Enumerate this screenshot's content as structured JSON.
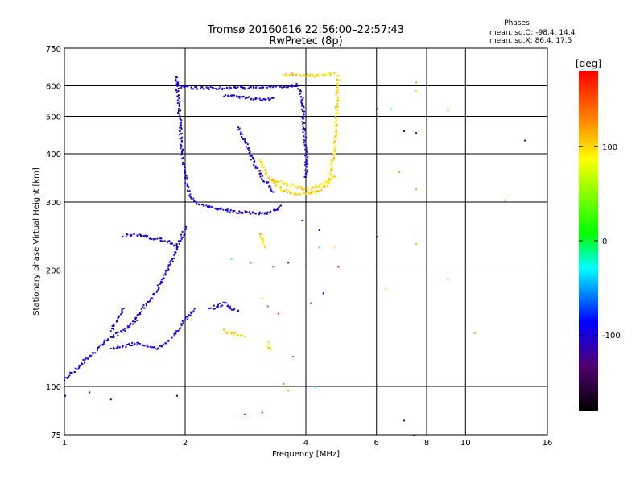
{
  "chart_data": {
    "type": "scatter",
    "title": "Tromsø 20160616 22:56:00–22:57:43",
    "subtitle": "RwPretec (8p)",
    "xlabel": "Frequency [MHz]",
    "ylabel": "Stationary phase Virtual Height [km]",
    "x_scale": "log",
    "y_scale": "log",
    "xlim": [
      1,
      16
    ],
    "ylim": [
      75,
      750
    ],
    "x_ticks": [
      1,
      2,
      4,
      6,
      8,
      10,
      16
    ],
    "y_ticks": [
      75,
      100,
      200,
      300,
      400,
      500,
      600,
      750
    ],
    "x_grid": [
      2,
      4,
      6,
      8,
      10
    ],
    "y_grid": [
      100,
      200,
      300,
      400,
      500,
      600
    ],
    "stats": {
      "heading": "Phases",
      "line1": "mean, sd,O: -98.4, 14.4",
      "line2": "mean, sd,X:  86.4, 17.5"
    },
    "colorbar": {
      "label": "[deg]",
      "min": -180,
      "max": 180,
      "ticks": [
        {
          "value": 100,
          "label": "100"
        },
        {
          "value": 0,
          "label": "0"
        },
        {
          "value": -100,
          "label": "-100"
        }
      ]
    },
    "series": [
      {
        "mode": "O",
        "phase_deg": -100,
        "traces": [
          {
            "x": [
              1.9,
              1.93,
              1.96,
              2.0,
              2.05,
              2.15,
              2.3,
              2.5,
              2.7,
              2.9,
              3.1,
              3.3,
              3.45
            ],
            "y": [
              600,
              500,
              400,
              340,
              310,
              298,
              292,
              287,
              284,
              282,
              282,
              285,
              295
            ]
          },
          {
            "x": [
              1.88,
              1.9,
              1.95,
              2.0,
              2.02
            ],
            "y": [
              640,
              610,
              600,
              602,
              600
            ]
          },
          {
            "x": [
              2.05,
              2.4,
              2.8,
              3.0,
              3.2,
              3.5,
              3.8,
              3.9,
              3.95,
              4.0,
              3.98
            ],
            "y": [
              595,
              595,
              595,
              598,
              600,
              600,
              605,
              560,
              450,
              380,
              350
            ]
          },
          {
            "x": [
              2.5,
              2.7,
              2.9,
              3.1,
              3.3
            ],
            "y": [
              570,
              565,
              560,
              555,
              560
            ]
          },
          {
            "x": [
              2.7,
              2.85,
              2.95,
              3.1,
              3.3
            ],
            "y": [
              470,
              420,
              380,
              350,
              320
            ]
          },
          {
            "x": [
              1.4,
              1.5,
              1.6,
              1.7,
              1.8,
              1.9
            ],
            "y": [
              247,
              248,
              245,
              242,
              238,
              232
            ]
          },
          {
            "x": [
              1.0,
              1.05,
              1.1,
              1.2,
              1.3,
              1.4,
              1.5,
              1.6,
              1.7,
              1.8,
              1.9,
              2.0
            ],
            "y": [
              105,
              110,
              115,
              125,
              135,
              140,
              150,
              165,
              180,
              200,
              230,
              260
            ]
          },
          {
            "x": [
              1.3,
              1.4,
              1.5,
              1.6,
              1.7,
              1.8,
              1.9,
              2.0,
              2.1
            ],
            "y": [
              125,
              128,
              130,
              128,
              126,
              130,
              140,
              150,
              160
            ]
          },
          {
            "x": [
              2.3,
              2.4,
              2.5,
              2.6,
              2.7
            ],
            "y": [
              160,
              162,
              165,
              160,
              158
            ]
          },
          {
            "x": [
              1.3,
              1.35,
              1.4
            ],
            "y": [
              140,
              150,
              160
            ]
          }
        ]
      },
      {
        "mode": "X",
        "phase_deg": 100,
        "traces": [
          {
            "x": [
              3.05,
              3.1,
              3.2,
              3.35,
              3.5,
              3.7,
              3.9,
              4.1,
              4.3,
              4.5,
              4.6,
              4.7,
              4.75,
              4.8
            ],
            "y": [
              390,
              370,
              350,
              335,
              325,
              318,
              316,
              318,
              322,
              335,
              360,
              420,
              520,
              640
            ]
          },
          {
            "x": [
              3.3,
              3.6,
              4.0,
              4.4,
              4.7
            ],
            "y": [
              345,
              335,
              325,
              335,
              350
            ]
          },
          {
            "x": [
              3.5,
              3.8,
              4.1,
              4.4,
              4.7
            ],
            "y": [
              640,
              645,
              640,
              640,
              650
            ]
          },
          {
            "x": [
              3.05,
              3.1,
              3.15
            ],
            "y": [
              250,
              240,
              230
            ]
          },
          {
            "x": [
              2.5,
              2.6,
              2.7,
              2.8
            ],
            "y": [
              140,
              138,
              136,
              135
            ]
          },
          {
            "x": [
              3.2,
              3.25
            ],
            "y": [
              130,
              125
            ]
          }
        ]
      }
    ],
    "scatter_points": [
      {
        "x": 7.5,
        "y": 615,
        "phase": 40
      },
      {
        "x": 7.5,
        "y": 585,
        "phase": 100
      },
      {
        "x": 9.0,
        "y": 520,
        "phase": 110
      },
      {
        "x": 6.0,
        "y": 525,
        "phase": -100
      },
      {
        "x": 6.5,
        "y": 525,
        "phase": -20
      },
      {
        "x": 7.0,
        "y": 460,
        "phase": -100
      },
      {
        "x": 7.5,
        "y": 455,
        "phase": -100
      },
      {
        "x": 14.0,
        "y": 435,
        "phase": -100
      },
      {
        "x": 6.8,
        "y": 360,
        "phase": 120
      },
      {
        "x": 7.5,
        "y": 325,
        "phase": 120
      },
      {
        "x": 12.5,
        "y": 305,
        "phase": 130
      },
      {
        "x": 6.0,
        "y": 245,
        "phase": -110
      },
      {
        "x": 7.5,
        "y": 235,
        "phase": 110
      },
      {
        "x": 4.3,
        "y": 255,
        "phase": -90
      },
      {
        "x": 4.3,
        "y": 230,
        "phase": -30
      },
      {
        "x": 4.7,
        "y": 230,
        "phase": 80
      },
      {
        "x": 3.9,
        "y": 270,
        "phase": -80
      },
      {
        "x": 3.3,
        "y": 205,
        "phase": 150
      },
      {
        "x": 3.6,
        "y": 210,
        "phase": -110
      },
      {
        "x": 4.8,
        "y": 205,
        "phase": 170
      },
      {
        "x": 2.6,
        "y": 215,
        "phase": -20
      },
      {
        "x": 2.9,
        "y": 210,
        "phase": 150
      },
      {
        "x": 3.1,
        "y": 170,
        "phase": 60
      },
      {
        "x": 3.2,
        "y": 162,
        "phase": 150
      },
      {
        "x": 3.4,
        "y": 155,
        "phase": 160
      },
      {
        "x": 4.1,
        "y": 165,
        "phase": -100
      },
      {
        "x": 4.4,
        "y": 175,
        "phase": -90
      },
      {
        "x": 6.3,
        "y": 180,
        "phase": 110
      },
      {
        "x": 9.0,
        "y": 190,
        "phase": 40
      },
      {
        "x": 10.5,
        "y": 138,
        "phase": 120
      },
      {
        "x": 3.7,
        "y": 120,
        "phase": 150
      },
      {
        "x": 3.6,
        "y": 98,
        "phase": 120
      },
      {
        "x": 4.2,
        "y": 100,
        "phase": -30
      },
      {
        "x": 3.5,
        "y": 102,
        "phase": 140
      },
      {
        "x": 3.1,
        "y": 86,
        "phase": 160
      },
      {
        "x": 2.8,
        "y": 85,
        "phase": 170
      },
      {
        "x": 7.0,
        "y": 82,
        "phase": -140
      },
      {
        "x": 1.9,
        "y": 95,
        "phase": -160
      },
      {
        "x": 1.0,
        "y": 95,
        "phase": -110
      },
      {
        "x": 1.3,
        "y": 93,
        "phase": -100
      },
      {
        "x": 1.15,
        "y": 97,
        "phase": -110
      },
      {
        "x": 7.4,
        "y": 75,
        "phase": -100
      }
    ]
  }
}
